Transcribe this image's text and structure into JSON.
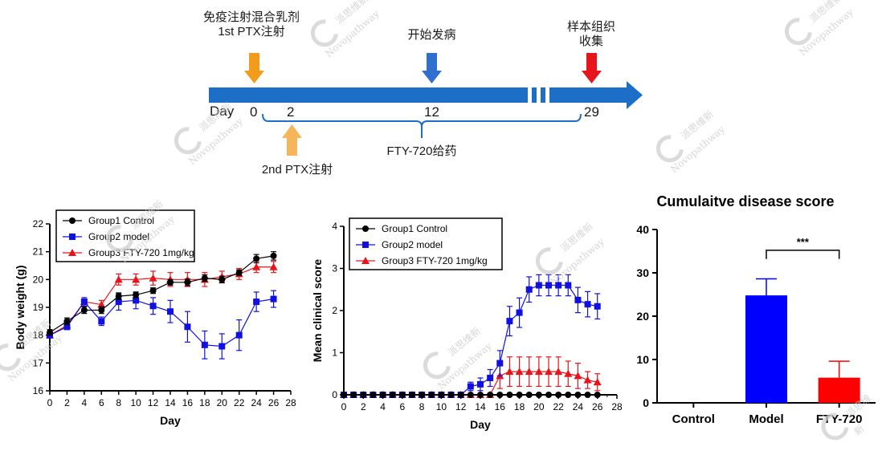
{
  "timeline": {
    "day_label": "Day",
    "events": [
      {
        "label_line1": "免疫注射混合乳剂",
        "label_line2": "1st PTX注射",
        "day": "0",
        "arrow_color": "#f39b1b"
      },
      {
        "label_line1": "2nd PTX注射",
        "day": "2",
        "arrow_color": "#f5b55a"
      },
      {
        "label_line1": "开始发病",
        "day": "12",
        "arrow_color": "#2f6fd0"
      },
      {
        "label_line1": "样本组织",
        "label_line2": "收集",
        "day": "29",
        "arrow_color": "#e8141b"
      }
    ],
    "bracket_label": "FTY-720给药",
    "bar_color": "#1d6ec6"
  },
  "watermark": {
    "line1": "派思维新",
    "line2": "Novopathway"
  },
  "chart_data": [
    {
      "type": "line",
      "xlabel": "Day",
      "ylabel": "Body weight (g)",
      "xlim": [
        0,
        28
      ],
      "ylim": [
        16,
        22
      ],
      "xticks": [
        "0",
        "2",
        "4",
        "6",
        "8",
        "10",
        "12",
        "14",
        "16",
        "18",
        "20",
        "22",
        "24",
        "26",
        "28"
      ],
      "yticks": [
        "16",
        "17",
        "18",
        "19",
        "20",
        "21",
        "22"
      ],
      "x": [
        0,
        2,
        4,
        6,
        8,
        10,
        12,
        14,
        16,
        18,
        20,
        22,
        24,
        26
      ],
      "legend_position": "top-left",
      "series": [
        {
          "name": "Group1 Control",
          "color": "#000000",
          "marker": "circle",
          "values": [
            18.1,
            18.5,
            18.9,
            18.9,
            19.4,
            19.45,
            19.6,
            19.9,
            19.9,
            20.05,
            20.0,
            20.25,
            20.75,
            20.85
          ],
          "errors": [
            0.1,
            0.12,
            0.12,
            0.12,
            0.12,
            0.1,
            0.1,
            0.1,
            0.12,
            0.12,
            0.12,
            0.1,
            0.15,
            0.15
          ]
        },
        {
          "name": "Group2 model",
          "color": "#1010e0",
          "marker": "square",
          "values": [
            18.0,
            18.3,
            19.2,
            18.5,
            19.2,
            19.25,
            19.05,
            18.85,
            18.3,
            17.65,
            17.6,
            18.0,
            19.2,
            19.3
          ],
          "errors": [
            0.1,
            0.1,
            0.15,
            0.15,
            0.3,
            0.3,
            0.3,
            0.4,
            0.55,
            0.5,
            0.45,
            0.55,
            0.35,
            0.3
          ]
        },
        {
          "name": "Group3 FTY-720 1mg/kg",
          "color": "#e8141b",
          "marker": "triangle",
          "values": [
            18.0,
            18.35,
            19.2,
            19.1,
            20.0,
            20.0,
            20.05,
            20.0,
            20.0,
            20.0,
            20.1,
            20.2,
            20.45,
            20.45
          ],
          "errors": [
            0.1,
            0.1,
            0.1,
            0.15,
            0.2,
            0.2,
            0.25,
            0.25,
            0.25,
            0.25,
            0.2,
            0.2,
            0.2,
            0.2
          ]
        }
      ]
    },
    {
      "type": "line",
      "xlabel": "Day",
      "ylabel": "Mean clinical score",
      "xlim": [
        0,
        28
      ],
      "ylim": [
        0,
        4
      ],
      "xticks": [
        "0",
        "2",
        "4",
        "6",
        "8",
        "10",
        "12",
        "14",
        "16",
        "18",
        "20",
        "22",
        "24",
        "26",
        "28"
      ],
      "yticks": [
        "0",
        "1",
        "2",
        "3",
        "4"
      ],
      "x": [
        0,
        1,
        2,
        3,
        4,
        5,
        6,
        7,
        8,
        9,
        10,
        11,
        12,
        13,
        14,
        15,
        16,
        17,
        18,
        19,
        20,
        21,
        22,
        23,
        24,
        25,
        26
      ],
      "legend_position": "top-left",
      "series": [
        {
          "name": "Group1 Control",
          "color": "#000000",
          "marker": "circle",
          "values": [
            0,
            0,
            0,
            0,
            0,
            0,
            0,
            0,
            0,
            0,
            0,
            0,
            0,
            0,
            0,
            0,
            0,
            0,
            0,
            0,
            0,
            0,
            0,
            0,
            0,
            0,
            0
          ],
          "errors": [
            0,
            0,
            0,
            0,
            0,
            0,
            0,
            0,
            0,
            0,
            0,
            0,
            0,
            0,
            0,
            0,
            0,
            0,
            0,
            0,
            0,
            0,
            0,
            0,
            0,
            0,
            0
          ]
        },
        {
          "name": "Group2 model",
          "color": "#1010e0",
          "marker": "square",
          "values": [
            0,
            0,
            0,
            0,
            0,
            0,
            0,
            0,
            0,
            0,
            0,
            0,
            0,
            0.2,
            0.25,
            0.4,
            0.75,
            1.75,
            1.95,
            2.5,
            2.6,
            2.6,
            2.6,
            2.6,
            2.25,
            2.15,
            2.1
          ],
          "errors": [
            0,
            0,
            0,
            0,
            0,
            0,
            0,
            0,
            0,
            0,
            0,
            0,
            0,
            0.1,
            0.15,
            0.2,
            0.3,
            0.35,
            0.35,
            0.3,
            0.25,
            0.25,
            0.25,
            0.25,
            0.3,
            0.3,
            0.3
          ]
        },
        {
          "name": "Group3 FTY-720 1mg/kg",
          "color": "#e8141b",
          "marker": "triangle",
          "values": [
            0,
            0,
            0,
            0,
            0,
            0,
            0,
            0,
            0,
            0,
            0,
            0,
            0,
            0,
            0,
            0,
            0.45,
            0.55,
            0.55,
            0.55,
            0.55,
            0.55,
            0.55,
            0.5,
            0.45,
            0.35,
            0.3
          ],
          "errors": [
            0,
            0,
            0,
            0,
            0,
            0,
            0,
            0,
            0,
            0,
            0,
            0,
            0,
            0,
            0,
            0,
            0.3,
            0.35,
            0.35,
            0.35,
            0.35,
            0.35,
            0.35,
            0.3,
            0.3,
            0.2,
            0.2
          ]
        }
      ]
    },
    {
      "type": "bar",
      "title": "Cumulaitve disease score",
      "categories": [
        "Control",
        "Model",
        "FTY-720"
      ],
      "values": [
        0,
        24.8,
        5.8
      ],
      "errors": [
        0,
        3.8,
        3.8
      ],
      "colors": [
        "#0000ff",
        "#0000ff",
        "#ff0000"
      ],
      "ylim": [
        0,
        40
      ],
      "yticks": [
        "0",
        "10",
        "20",
        "30",
        "40"
      ],
      "significance": {
        "label": "***",
        "between": [
          "Model",
          "FTY-720"
        ]
      }
    }
  ]
}
